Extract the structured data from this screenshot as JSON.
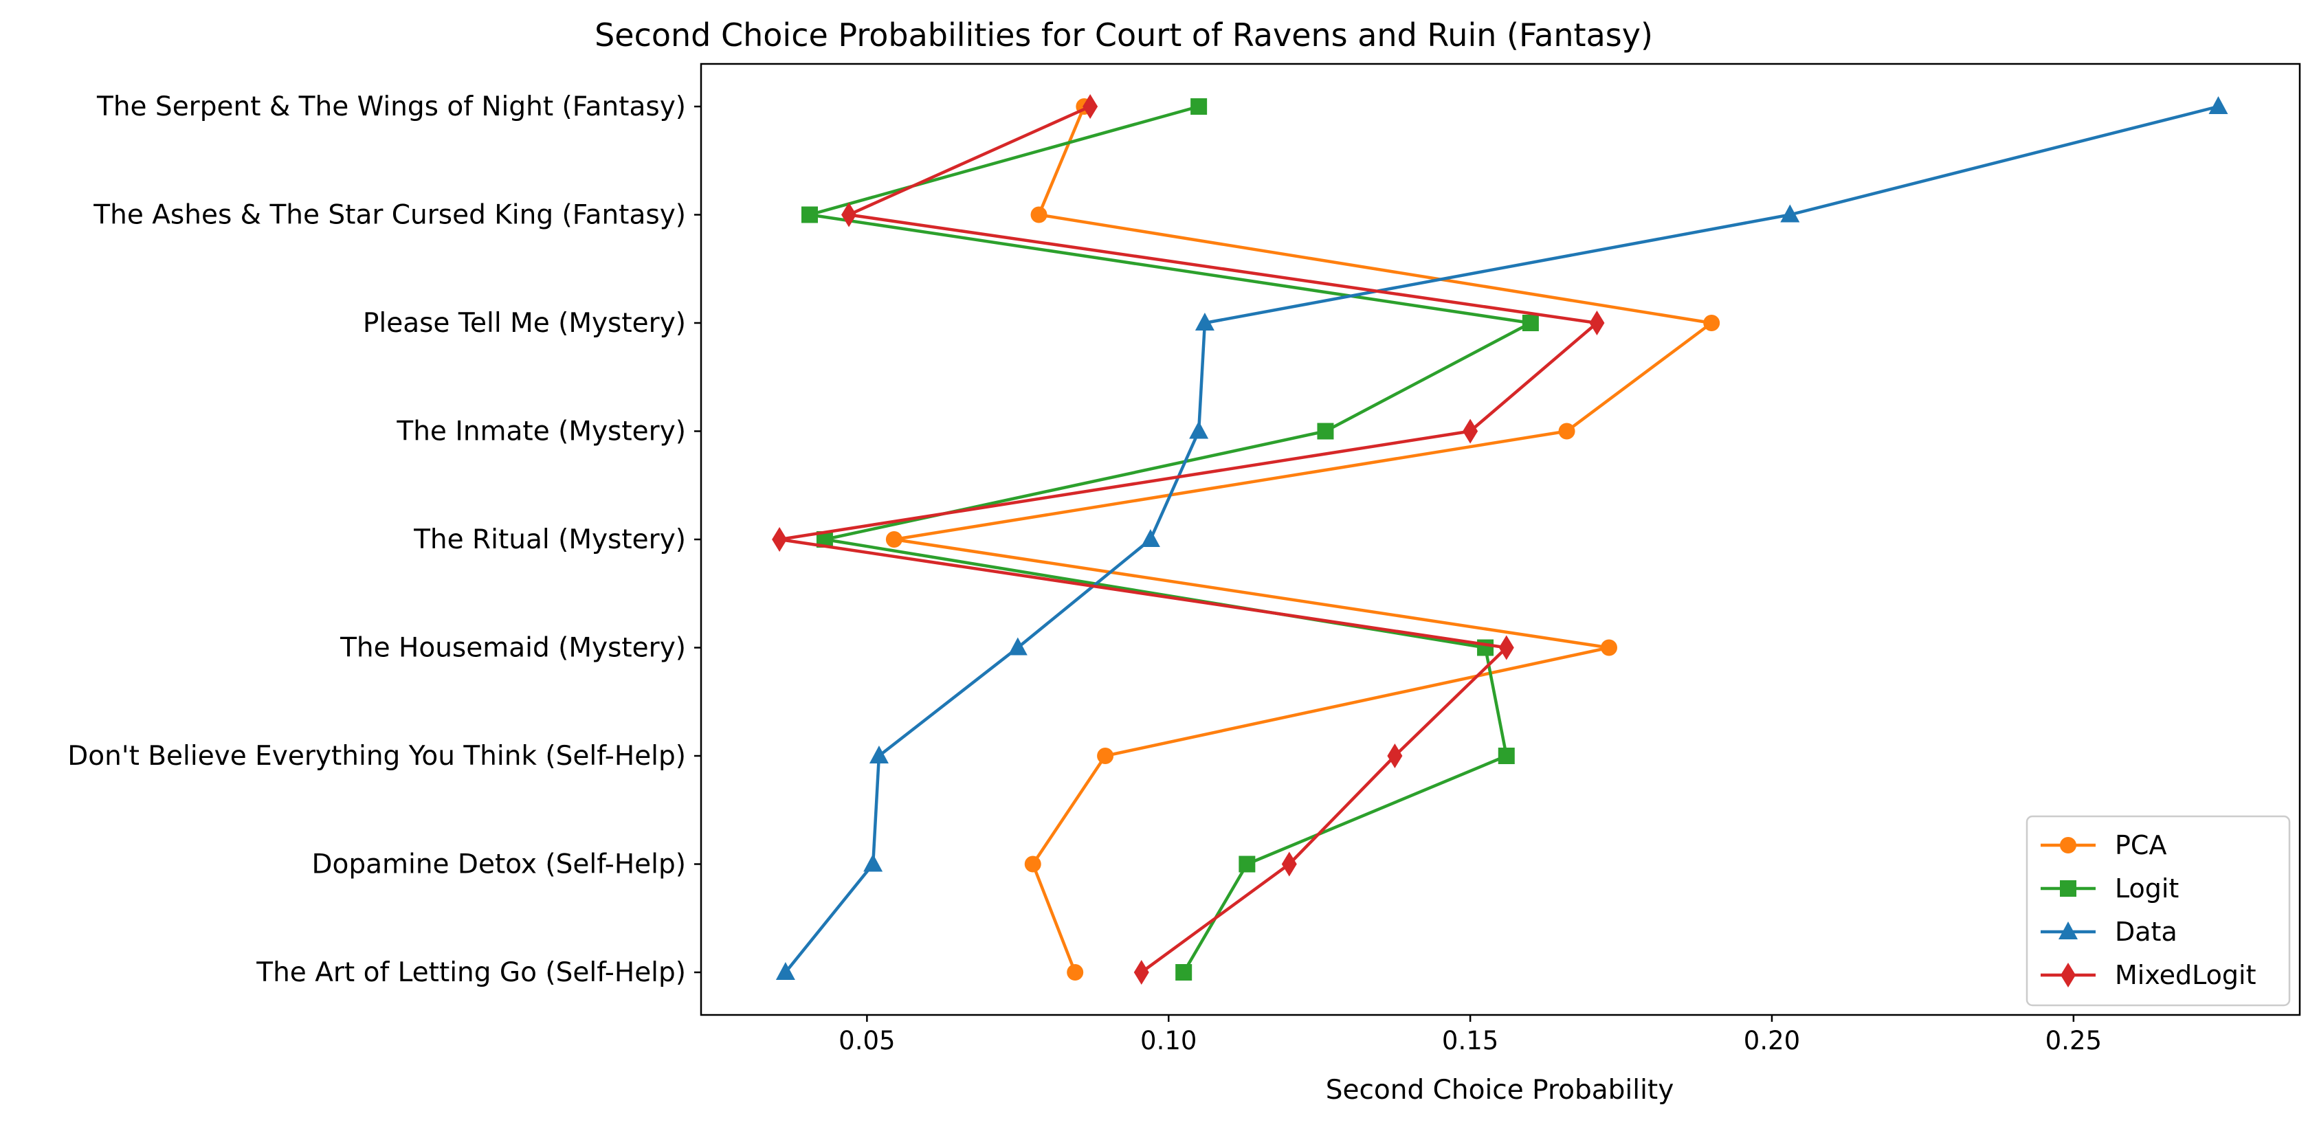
{
  "chart_data": {
    "type": "line",
    "title": "Second Choice Probabilities for Court of Ravens and Ruin (Fantasy)",
    "xlabel": "Second Choice Probability",
    "ylabel": "",
    "xlim": [
      0.0225,
      0.2875
    ],
    "x_ticks": [
      0.05,
      0.1,
      0.15,
      0.2,
      0.25
    ],
    "x_tick_labels": [
      "0.05",
      "0.10",
      "0.15",
      "0.20",
      "0.25"
    ],
    "categories": [
      "The Serpent & The Wings of Night (Fantasy)",
      "The Ashes & The Star Cursed King (Fantasy)",
      "Please Tell Me (Mystery)",
      "The Inmate (Mystery)",
      "The Ritual (Mystery)",
      "The Housemaid (Mystery)",
      "Don't Believe Everything You Think (Self-Help)",
      "Dopamine Detox (Self-Help)",
      "The Art of Letting Go (Self-Help)"
    ],
    "grid": false,
    "legend_position": "lower-right",
    "series": [
      {
        "name": "PCA",
        "color": "#ff7f0e",
        "marker": "circle",
        "values": [
          0.086,
          0.0785,
          0.19,
          0.166,
          0.0545,
          0.173,
          0.0895,
          0.0775,
          0.0845
        ]
      },
      {
        "name": "Logit",
        "color": "#2ca02c",
        "marker": "square",
        "values": [
          0.105,
          0.0405,
          0.16,
          0.126,
          0.043,
          0.1525,
          0.156,
          0.113,
          0.1025
        ]
      },
      {
        "name": "Data",
        "color": "#1f77b4",
        "marker": "triangle",
        "values": [
          0.274,
          0.203,
          0.106,
          0.105,
          0.097,
          0.075,
          0.052,
          0.051,
          0.0365
        ]
      },
      {
        "name": "MixedLogit",
        "color": "#d62728",
        "marker": "diamond",
        "values": [
          0.087,
          0.047,
          0.171,
          0.15,
          0.0355,
          0.156,
          0.1375,
          0.12,
          0.0955
        ]
      }
    ]
  }
}
